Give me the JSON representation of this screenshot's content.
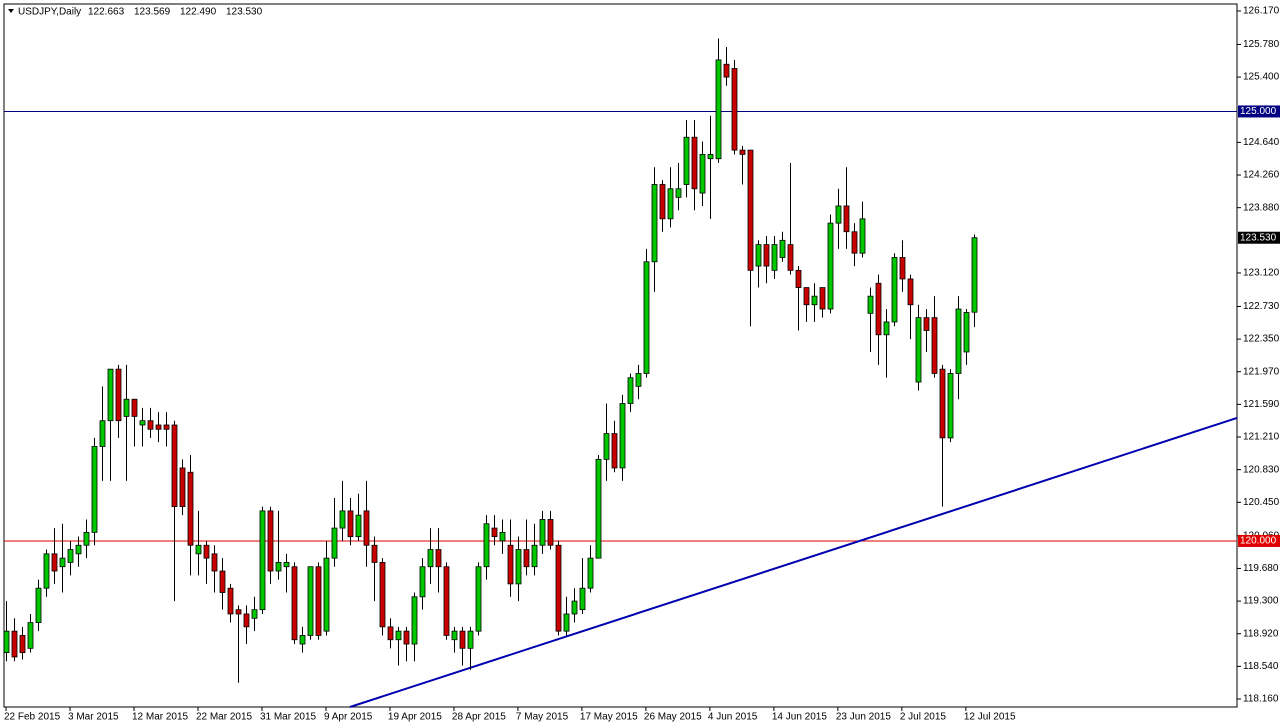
{
  "chart_data": {
    "type": "candlestick",
    "title": "USDJPY,Daily",
    "header_ohlc": [
      "122.663",
      "123.569",
      "122.490",
      "123.530"
    ],
    "up_color": "#00c800",
    "down_color": "#c80000",
    "outline_color": "#000000",
    "categories": [
      "22 Feb 2015",
      null,
      null,
      null,
      null,
      null,
      null,
      null,
      "3 Mar 2015",
      null,
      null,
      null,
      null,
      null,
      null,
      null,
      "12 Mar 2015",
      null,
      null,
      null,
      null,
      null,
      null,
      null,
      "22 Mar 2015",
      null,
      null,
      null,
      null,
      null,
      null,
      null,
      "31 Mar 2015",
      null,
      null,
      null,
      null,
      null,
      null,
      null,
      "9 Apr 2015",
      null,
      null,
      null,
      null,
      null,
      null,
      null,
      "19 Apr 2015",
      null,
      null,
      null,
      null,
      null,
      null,
      null,
      "28 Apr 2015",
      null,
      null,
      null,
      null,
      null,
      null,
      null,
      "7 May 2015",
      null,
      null,
      null,
      null,
      null,
      null,
      null,
      "17 May 2015",
      null,
      null,
      null,
      null,
      null,
      null,
      null,
      "26 May 2015",
      null,
      null,
      null,
      null,
      null,
      null,
      null,
      "4 Jun 2015",
      null,
      null,
      null,
      null,
      null,
      null,
      null,
      "14 Jun 2015",
      null,
      null,
      null,
      null,
      null,
      null,
      null,
      "23 Jun 2015",
      null,
      null,
      null,
      null,
      null,
      null,
      null,
      "2 Jul 2015",
      null,
      null,
      null,
      null,
      null,
      null,
      null,
      "12 Jul 2015",
      null
    ],
    "open": [
      118.7,
      118.95,
      118.9,
      118.75,
      119.05,
      119.45,
      119.85,
      119.7,
      119.75,
      119.85,
      119.95,
      120.1,
      121.1,
      121.4,
      122.0,
      121.45,
      121.65,
      121.35,
      121.4,
      121.35,
      121.35,
      121.35,
      120.85,
      120.8,
      119.85,
      119.95,
      119.85,
      119.65,
      119.45,
      119.2,
      119.15,
      119.1,
      119.2,
      120.35,
      119.65,
      119.7,
      119.7,
      118.8,
      118.9,
      119.7,
      118.95,
      119.8,
      120.15,
      120.35,
      120.05,
      120.35,
      119.95,
      119.75,
      119.0,
      118.85,
      118.95,
      118.8,
      119.35,
      119.7,
      119.9,
      119.7,
      118.85,
      118.95,
      118.75,
      118.95,
      119.7,
      120.15,
      120.0,
      119.95,
      119.5,
      119.9,
      119.7,
      119.95,
      120.25,
      119.95,
      118.95,
      119.15,
      119.2,
      119.45,
      119.8,
      120.95,
      121.25,
      120.85,
      121.6,
      121.8,
      121.95,
      123.25,
      124.15,
      123.75,
      124.0,
      124.15,
      124.7,
      124.05,
      124.45,
      124.45,
      125.55,
      125.5,
      124.55,
      124.55,
      123.2,
      123.45,
      123.15,
      123.3,
      123.45,
      123.15,
      122.95,
      122.75,
      122.95,
      122.7,
      123.7,
      123.9,
      123.6,
      123.35,
      122.65,
      123.0,
      122.4,
      122.55,
      123.3,
      123.05,
      121.85,
      122.6,
      122.6,
      122.0,
      121.2,
      121.95,
      122.2,
      122.663
    ],
    "high": [
      119.3,
      119.1,
      119.0,
      119.15,
      119.55,
      119.9,
      120.15,
      120.2,
      120.0,
      120.05,
      120.25,
      121.2,
      121.8,
      122.0,
      122.05,
      122.05,
      121.65,
      121.55,
      121.55,
      121.5,
      121.5,
      121.4,
      120.95,
      121.0,
      120.35,
      120.0,
      119.95,
      119.8,
      119.5,
      119.25,
      119.25,
      119.35,
      120.4,
      120.4,
      120.35,
      119.85,
      119.75,
      119.0,
      119.7,
      119.75,
      120.0,
      120.5,
      120.7,
      120.5,
      120.55,
      120.7,
      120.05,
      119.8,
      119.1,
      119.0,
      119.0,
      119.4,
      119.8,
      120.15,
      120.15,
      119.75,
      119.0,
      119.0,
      119.0,
      119.75,
      120.3,
      120.3,
      120.25,
      120.25,
      120.05,
      120.25,
      120.2,
      120.35,
      120.35,
      120.0,
      119.35,
      119.45,
      119.8,
      119.95,
      121.0,
      121.6,
      121.4,
      121.7,
      121.95,
      122.05,
      123.4,
      124.35,
      124.2,
      124.35,
      124.4,
      124.9,
      124.9,
      124.65,
      124.95,
      125.85,
      125.75,
      125.6,
      124.6,
      124.55,
      123.5,
      123.55,
      123.55,
      123.6,
      124.4,
      123.2,
      122.95,
      123.0,
      122.95,
      123.8,
      124.1,
      124.35,
      123.7,
      123.95,
      122.95,
      123.1,
      122.7,
      123.35,
      123.5,
      123.1,
      122.75,
      122.7,
      122.85,
      122.05,
      122.0,
      122.85,
      122.7,
      123.569
    ],
    "low": [
      118.6,
      118.6,
      118.62,
      118.7,
      118.95,
      119.35,
      119.5,
      119.4,
      119.6,
      119.7,
      119.8,
      119.95,
      120.7,
      120.7,
      121.2,
      120.7,
      121.1,
      121.1,
      121.2,
      121.15,
      121.1,
      119.3,
      120.3,
      119.6,
      119.6,
      119.5,
      119.4,
      119.2,
      119.05,
      118.35,
      118.8,
      118.95,
      119.15,
      119.5,
      119.55,
      119.4,
      118.8,
      118.7,
      118.85,
      118.85,
      118.9,
      119.7,
      120.0,
      119.95,
      120.0,
      119.7,
      119.3,
      118.9,
      118.75,
      118.55,
      118.6,
      118.6,
      119.2,
      119.5,
      119.4,
      118.85,
      118.7,
      118.55,
      118.5,
      118.9,
      119.55,
      119.95,
      119.85,
      119.35,
      119.3,
      119.6,
      119.6,
      119.85,
      119.9,
      118.9,
      118.9,
      119.05,
      119.15,
      119.4,
      119.8,
      120.7,
      120.8,
      120.7,
      121.5,
      121.65,
      121.9,
      122.9,
      123.6,
      123.65,
      123.85,
      124.0,
      123.85,
      123.9,
      123.75,
      124.4,
      125.3,
      124.5,
      124.15,
      122.5,
      122.95,
      123.0,
      123.05,
      123.25,
      123.1,
      122.45,
      122.55,
      122.55,
      122.6,
      122.65,
      123.4,
      123.4,
      123.2,
      123.3,
      122.2,
      122.05,
      121.9,
      122.5,
      122.9,
      122.35,
      121.75,
      122.2,
      121.9,
      120.4,
      121.15,
      121.65,
      122.05,
      122.49
    ],
    "close": [
      118.95,
      118.65,
      118.7,
      119.05,
      119.45,
      119.85,
      119.65,
      119.8,
      119.9,
      119.95,
      120.1,
      121.1,
      121.4,
      122.0,
      121.4,
      121.65,
      121.45,
      121.4,
      121.3,
      121.3,
      121.3,
      120.4,
      120.4,
      119.95,
      119.95,
      119.8,
      119.65,
      119.4,
      119.15,
      119.15,
      119.0,
      119.2,
      120.35,
      119.65,
      119.75,
      119.75,
      118.85,
      118.9,
      119.7,
      118.9,
      119.8,
      120.15,
      120.35,
      120.05,
      120.3,
      119.95,
      119.75,
      119.0,
      118.85,
      118.95,
      118.8,
      119.35,
      119.7,
      119.9,
      119.7,
      118.9,
      118.95,
      118.75,
      118.95,
      119.7,
      120.2,
      120.05,
      120.1,
      119.5,
      119.9,
      119.7,
      119.95,
      120.25,
      119.95,
      118.95,
      119.15,
      119.3,
      119.45,
      119.8,
      120.95,
      121.25,
      120.85,
      121.6,
      121.9,
      121.95,
      123.25,
      124.15,
      123.75,
      124.1,
      124.1,
      124.7,
      124.1,
      124.5,
      124.5,
      125.6,
      125.4,
      124.55,
      124.5,
      123.15,
      123.45,
      123.2,
      123.45,
      123.5,
      123.15,
      122.95,
      122.75,
      122.85,
      122.7,
      123.7,
      123.9,
      123.6,
      123.35,
      123.75,
      122.85,
      122.4,
      122.55,
      123.3,
      123.05,
      122.75,
      122.6,
      122.45,
      121.95,
      121.2,
      121.95,
      122.7,
      122.66,
      123.53
    ],
    "xlim": [
      -0.25,
      153.9
    ],
    "ylim": [
      118.067,
      126.251
    ],
    "yticks": [
      {
        "value": 126.17,
        "label": "126.170"
      },
      {
        "value": 125.78,
        "label": "125.780"
      },
      {
        "value": 125.4,
        "label": "125.400"
      },
      {
        "value": 124.64,
        "label": "124.640"
      },
      {
        "value": 124.26,
        "label": "124.260"
      },
      {
        "value": 123.88,
        "label": "123.880"
      },
      {
        "value": 123.12,
        "label": "123.120"
      },
      {
        "value": 122.73,
        "label": "122.730"
      },
      {
        "value": 122.35,
        "label": "122.350"
      },
      {
        "value": 121.97,
        "label": "121.970"
      },
      {
        "value": 121.59,
        "label": "121.590"
      },
      {
        "value": 121.21,
        "label": "121.210"
      },
      {
        "value": 120.83,
        "label": "120.830"
      },
      {
        "value": 120.45,
        "label": "120.450"
      },
      {
        "value": 120.06,
        "label": "120.060"
      },
      {
        "value": 119.68,
        "label": "119.680"
      },
      {
        "value": 119.3,
        "label": "119.300"
      },
      {
        "value": 118.92,
        "label": "118.920"
      },
      {
        "value": 118.54,
        "label": "118.540"
      },
      {
        "value": 118.16,
        "label": "118.160"
      }
    ],
    "hlines": [
      {
        "value": 125.0,
        "label": "125.000",
        "color": "#000080"
      },
      {
        "value": 120.0,
        "label": "120.000",
        "color": "#e00000"
      }
    ],
    "price_marker": {
      "value": 123.53,
      "label": "123.530",
      "color": "#000000"
    },
    "trendline": {
      "color": "#0000b0",
      "x": [
        43,
        153.9
      ],
      "y": [
        118.067,
        121.432
      ]
    },
    "grid": false
  }
}
